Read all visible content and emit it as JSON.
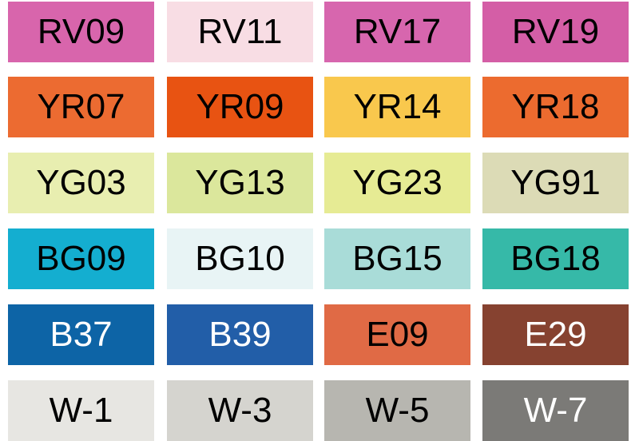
{
  "swatches": [
    {
      "code": "RV09",
      "color": "#d865ac",
      "text": "#000000"
    },
    {
      "code": "RV11",
      "color": "#f8dde4",
      "text": "#000000"
    },
    {
      "code": "RV17",
      "color": "#d766ae",
      "text": "#000000"
    },
    {
      "code": "RV19",
      "color": "#d45ea6",
      "text": "#000000"
    },
    {
      "code": "YR07",
      "color": "#ec6b31",
      "text": "#000000"
    },
    {
      "code": "YR09",
      "color": "#e85312",
      "text": "#000000"
    },
    {
      "code": "YR14",
      "color": "#f9c84d",
      "text": "#000000"
    },
    {
      "code": "YR18",
      "color": "#ec6b2f",
      "text": "#000000"
    },
    {
      "code": "YG03",
      "color": "#e8eeb0",
      "text": "#000000"
    },
    {
      "code": "YG13",
      "color": "#dbe79c",
      "text": "#000000"
    },
    {
      "code": "YG23",
      "color": "#e6eb94",
      "text": "#000000"
    },
    {
      "code": "YG91",
      "color": "#dcdbb6",
      "text": "#000000"
    },
    {
      "code": "BG09",
      "color": "#14aed0",
      "text": "#000000"
    },
    {
      "code": "BG10",
      "color": "#e8f4f5",
      "text": "#000000"
    },
    {
      "code": "BG15",
      "color": "#a9dcd8",
      "text": "#000000"
    },
    {
      "code": "BG18",
      "color": "#36b9a8",
      "text": "#000000"
    },
    {
      "code": "B37",
      "color": "#0d64a6",
      "text": "#ffffff"
    },
    {
      "code": "B39",
      "color": "#225ea8",
      "text": "#ffffff"
    },
    {
      "code": "E09",
      "color": "#e06a45",
      "text": "#000000"
    },
    {
      "code": "E29",
      "color": "#864230",
      "text": "#ffffff"
    },
    {
      "code": "W-1",
      "color": "#e7e6e2",
      "text": "#000000"
    },
    {
      "code": "W-3",
      "color": "#d5d4cf",
      "text": "#000000"
    },
    {
      "code": "W-5",
      "color": "#b7b6b0",
      "text": "#000000"
    },
    {
      "code": "W-7",
      "color": "#7b7a77",
      "text": "#ffffff"
    }
  ]
}
